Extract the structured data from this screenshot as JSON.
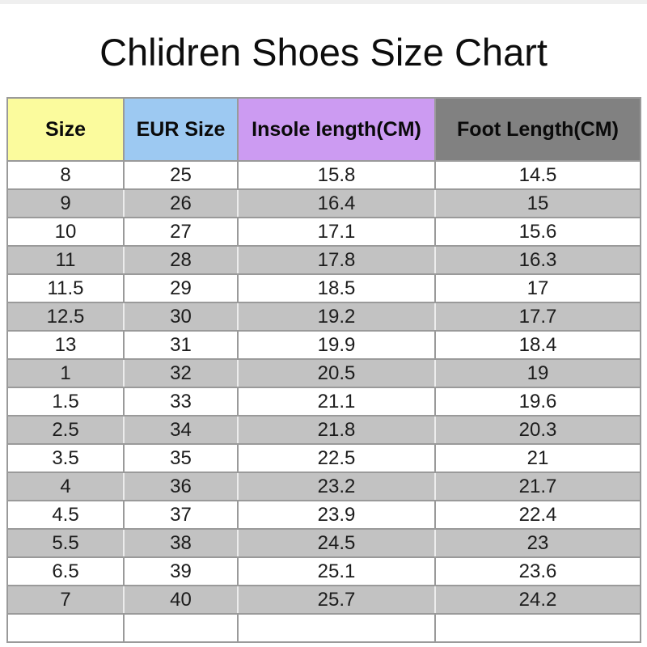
{
  "page": {
    "top_strip_color": "#efefef",
    "background": "#ffffff"
  },
  "chart_data": {
    "type": "table",
    "title": "Chlidren Shoes Size Chart",
    "columns": [
      "Size",
      "EUR Size",
      "Insole length(CM)",
      "Foot Length(CM)"
    ],
    "rows": [
      [
        "8",
        "25",
        "15.8",
        "14.5"
      ],
      [
        "9",
        "26",
        "16.4",
        "15"
      ],
      [
        "10",
        "27",
        "17.1",
        "15.6"
      ],
      [
        "11",
        "28",
        "17.8",
        "16.3"
      ],
      [
        "11.5",
        "29",
        "18.5",
        "17"
      ],
      [
        "12.5",
        "30",
        "19.2",
        "17.7"
      ],
      [
        "13",
        "31",
        "19.9",
        "18.4"
      ],
      [
        "1",
        "32",
        "20.5",
        "19"
      ],
      [
        "1.5",
        "33",
        "21.1",
        "19.6"
      ],
      [
        "2.5",
        "34",
        "21.8",
        "20.3"
      ],
      [
        "3.5",
        "35",
        "22.5",
        "21"
      ],
      [
        "4",
        "36",
        "23.2",
        "21.7"
      ],
      [
        "4.5",
        "37",
        "23.9",
        "22.4"
      ],
      [
        "5.5",
        "38",
        "24.5",
        "23"
      ],
      [
        "6.5",
        "39",
        "25.1",
        "23.6"
      ],
      [
        "7",
        "40",
        "25.7",
        "24.2"
      ]
    ],
    "trailing_empty_row": true,
    "layout_hints": {
      "header_fills": [
        "#fbfb9d",
        "#9dc9f2",
        "#cc9bf2",
        "#818181"
      ],
      "stripe_fill": "#c2c2c2",
      "row_fill": "#ffffff",
      "border_color": "#9a9a9a",
      "striped_row_indexes": "odd rows (9,11,12.5,1,2.5,4,5.5,7) are gray"
    }
  }
}
